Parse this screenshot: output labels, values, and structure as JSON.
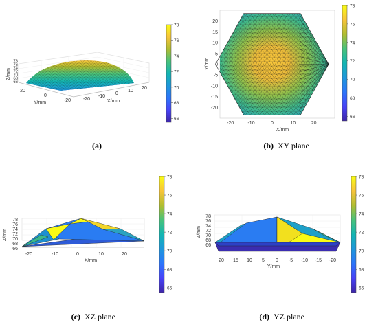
{
  "colormap": [
    "#3e26a8",
    "#4743f8",
    "#2c75fa",
    "#1e97db",
    "#13b5b2",
    "#49c27b",
    "#b0bd31",
    "#f7c43a",
    "#f9fb15"
  ],
  "colorbar": {
    "ticks": [
      66,
      68,
      70,
      72,
      74,
      76,
      78
    ],
    "range": [
      65.5,
      78
    ]
  },
  "captions": {
    "a": {
      "label": "(a)",
      "text": ""
    },
    "b": {
      "label": "(b)",
      "text": "XY plane"
    },
    "c": {
      "label": "(c)",
      "text": "XZ plane"
    },
    "d": {
      "label": "(d)",
      "text": "YZ plane"
    }
  },
  "chart_data": [
    {
      "id": "a",
      "type": "surface3d",
      "zlabel": "Z/mm",
      "ylabel": "Y/mm",
      "xlabel": "X/mm",
      "zticks": [
        66,
        68,
        70,
        72,
        74,
        76,
        78
      ],
      "yticks": [
        20,
        0,
        -20
      ],
      "xticks": [
        -20,
        -10,
        0,
        10,
        20
      ],
      "zlim": [
        66,
        78
      ]
    },
    {
      "id": "b",
      "type": "heatmap",
      "xlabel": "X/mm",
      "ylabel": "Y/mm",
      "xticks": [
        -20,
        -10,
        0,
        10,
        20
      ],
      "yticks": [
        20,
        15,
        10,
        5,
        0,
        -5,
        -10,
        -15,
        -20
      ],
      "xlim": [
        -25,
        30
      ],
      "ylim": [
        -25,
        25
      ],
      "peak": {
        "x": -5,
        "y": 0,
        "z": 78
      },
      "edge_value": 68,
      "hexagon": [
        [
          -13.6,
          23.5
        ],
        [
          13.6,
          23.5
        ],
        [
          27.1,
          0
        ],
        [
          13.6,
          -23.5
        ],
        [
          -13.6,
          -23.5
        ],
        [
          -27.1,
          0
        ]
      ]
    },
    {
      "id": "c",
      "type": "surface-projection",
      "xlabel": "X/mm",
      "ylabel": "Z/mm",
      "xticks": [
        -20,
        -10,
        0,
        10,
        20
      ],
      "yticks": [
        78,
        76,
        74,
        72,
        70,
        68,
        66
      ],
      "xlim": [
        -25,
        30
      ],
      "ylim": [
        66,
        78
      ]
    },
    {
      "id": "d",
      "type": "surface-projection",
      "xlabel": "Y/mm",
      "ylabel": "Z/mm",
      "xticks": [
        20,
        15,
        10,
        5,
        0,
        -5,
        -10,
        -15,
        -20
      ],
      "yticks": [
        78,
        76,
        74,
        72,
        70,
        68,
        66
      ],
      "xlim": [
        22,
        -22
      ],
      "ylim": [
        66,
        78
      ]
    }
  ]
}
